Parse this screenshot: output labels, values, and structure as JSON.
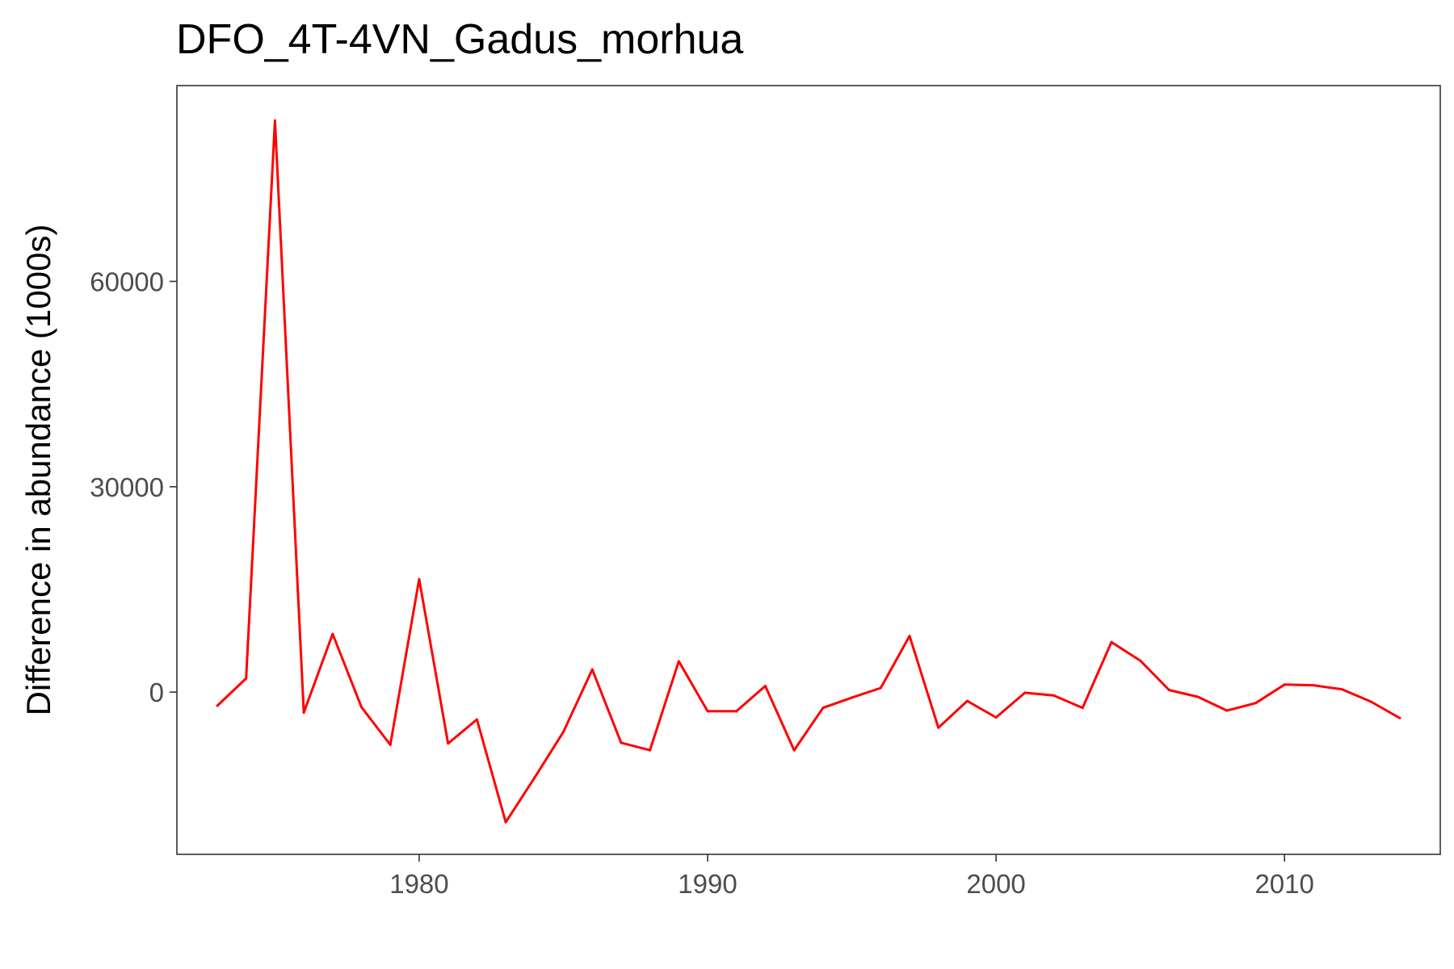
{
  "chart_data": {
    "type": "line",
    "title": "DFO_4T-4VN_Gadus_morhua",
    "xlabel": "",
    "ylabel": "Difference in abundance (1000s)",
    "xlim": [
      1971.6,
      2015.4
    ],
    "ylim": [
      -23700,
      88600
    ],
    "x_ticks": [
      1980,
      1990,
      2000,
      2010
    ],
    "y_ticks": [
      0,
      30000,
      60000
    ],
    "grid": false,
    "legend": "none",
    "line_color": "#ff0000",
    "series": [
      {
        "x": [
          1973,
          1974,
          1975,
          1976,
          1977,
          1978,
          1979,
          1980,
          1981,
          1982,
          1983,
          1984,
          1985,
          1986,
          1987,
          1988,
          1989,
          1990,
          1991,
          1992,
          1993,
          1994,
          1995,
          1996,
          1997,
          1998,
          1999,
          2000,
          2001,
          2002,
          2003,
          2004,
          2005,
          2006,
          2007,
          2008,
          2009,
          2010,
          2011,
          2012,
          2013,
          2014
        ],
        "y": [
          -2000,
          2000,
          83500,
          -3000,
          8500,
          -2200,
          -7700,
          16500,
          -7500,
          -4000,
          -19000,
          -12500,
          -5800,
          3300,
          -7400,
          -8500,
          4500,
          -2800,
          -2800,
          900,
          -8500,
          -2300,
          -800,
          600,
          8200,
          -5200,
          -1300,
          -3700,
          -100,
          -500,
          -2300,
          7300,
          4600,
          300,
          -700,
          -2700,
          -1600,
          1100,
          1000,
          400,
          -1400,
          -3800
        ]
      }
    ]
  }
}
